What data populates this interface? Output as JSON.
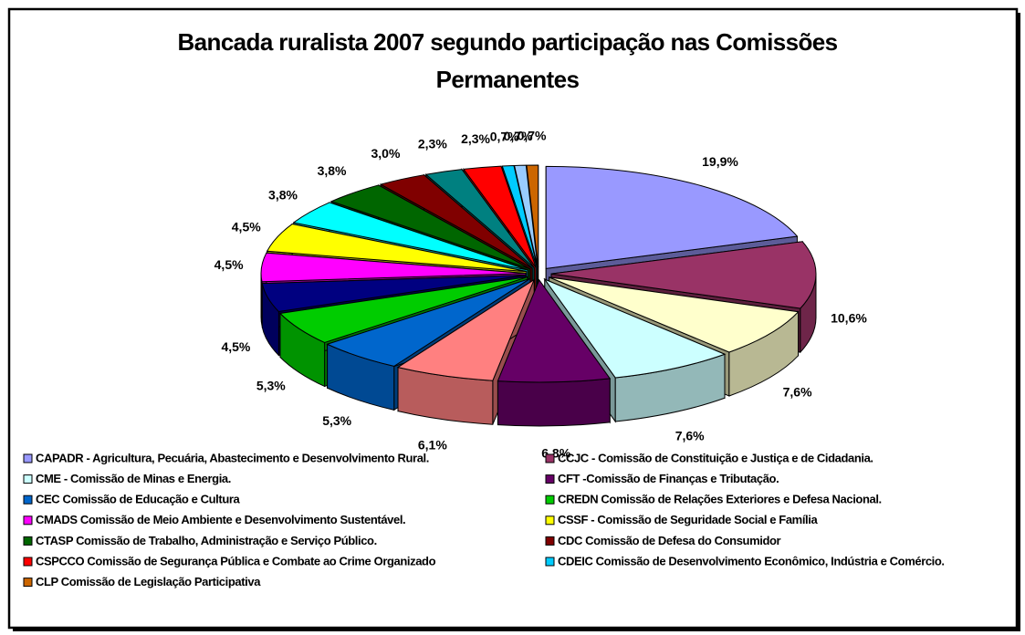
{
  "chart_data": {
    "type": "pie3d",
    "title": "Bancada ruralista 2007 segundo participação nas Comissões Permanentes",
    "categories": [
      "CAPADR - Agricultura, Pecuária, Abastecimento e Desenvolvimento Rural.",
      "CCJC - Comissão de Constituição e Justiça e de Cidadania.",
      null,
      "CME - Comissão de Minas e Energia.",
      "CFT -Comissão de Finanças e Tributação.",
      null,
      "CEC  Comissão de Educação e Cultura",
      "CREDN Comissão de Relações Exteriores e Defesa Nacional.",
      null,
      "CMADS Comissão de Meio Ambiente e Desenvolvimento Sustentável.",
      "CSSF - Comissão de Seguridade Social e Família",
      null,
      "CTASP Comissão de Trabalho, Administração e Serviço Público.",
      "CDC  Comissão de Defesa do Consumidor",
      null,
      "CSPCCO Comissão de Segurança Pública e Combate ao Crime Organizado",
      "CDEIC Comissão de Desenvolvimento Econômico, Indústria e Comércio.",
      null,
      "CLP  Comissão de Legislação Participativa"
    ],
    "values": [
      19.9,
      10.6,
      7.6,
      7.6,
      6.8,
      6.1,
      5.3,
      5.3,
      4.5,
      4.5,
      4.5,
      3.8,
      3.8,
      3.0,
      2.3,
      2.3,
      0.7,
      0.7,
      0.7
    ],
    "value_labels": [
      "19,9%",
      "10,6%",
      "7,6%",
      "7,6%",
      "6,8%",
      "6,1%",
      "5,3%",
      "5,3%",
      "4,5%",
      "4,5%",
      "4,5%",
      "3,8%",
      "3,8%",
      "3,0%",
      "2,3%",
      "2,3%",
      "0,7%",
      "0,7%",
      "0,7%"
    ],
    "colors": [
      "#9999ff",
      "#993366",
      "#ffffcc",
      "#ccffff",
      "#660066",
      "#ff8080",
      "#0066cc",
      "#00cc00",
      "#000080",
      "#ff00ff",
      "#ffff00",
      "#00ffff",
      "#006600",
      "#800000",
      "#008080",
      "#ff0000",
      "#00ccff",
      "#99ccff",
      "#cc6600"
    ]
  }
}
